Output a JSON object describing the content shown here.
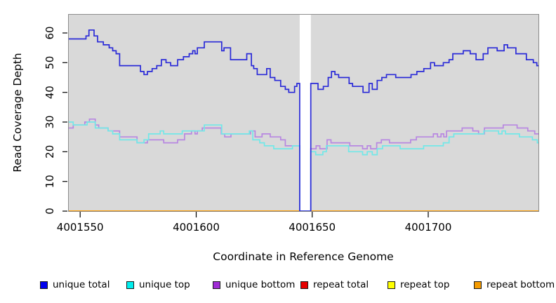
{
  "figure": {
    "x_axis_label": "Coordinate in Reference Genome",
    "y_axis_label": "Read Coverage Depth"
  },
  "chart_data": {
    "type": "line",
    "step": true,
    "title": "",
    "xlabel": "Coordinate in Reference Genome",
    "ylabel": "Read Coverage Depth",
    "x_range": [
      4001544.8,
      4001747.8
    ],
    "y_range": [
      0,
      66.4
    ],
    "x_ticks": [
      "4001550",
      "4001600",
      "4001650",
      "4001700"
    ],
    "x_tick_values": [
      4001550,
      4001600,
      4001650,
      4001700
    ],
    "y_ticks": [
      "0",
      "10",
      "20",
      "30",
      "40",
      "50",
      "60"
    ],
    "y_tick_values": [
      0,
      10,
      20,
      30,
      40,
      50,
      60
    ],
    "plot_bg": "#d9d9d9",
    "masked_region": [
      4001644.6,
      4001649.4
    ],
    "masked_region_color": "#ffffff",
    "grid": false,
    "legend_position": "bottom",
    "legend": [
      {
        "label": "unique total",
        "color": "#0000ee"
      },
      {
        "label": "unique top",
        "color": "#00eeee"
      },
      {
        "label": "unique bottom",
        "color": "#a02cd6"
      },
      {
        "label": "repeat total",
        "color": "#e60000"
      },
      {
        "label": "repeat top",
        "color": "#ffff00"
      },
      {
        "label": "repeat bottom",
        "color": "#f59b00"
      }
    ],
    "series": [
      {
        "name": "repeat total",
        "color": "#e60000",
        "points": [
          [
            4001544.8,
            0
          ]
        ]
      },
      {
        "name": "repeat top",
        "color": "#ffff00",
        "points": [
          [
            4001544.8,
            0
          ]
        ]
      },
      {
        "name": "repeat bottom",
        "color": "#ff9800",
        "points": [
          [
            4001544.8,
            0
          ]
        ]
      },
      {
        "name": "unique bottom",
        "color": "#b887e1",
        "points": [
          [
            4001544.8,
            28
          ],
          [
            4001547,
            29
          ],
          [
            4001552,
            30
          ],
          [
            4001554,
            31
          ],
          [
            4001556.5,
            29
          ],
          [
            4001558,
            28
          ],
          [
            4001562,
            27
          ],
          [
            4001567,
            25
          ],
          [
            4001574.5,
            23
          ],
          [
            4001579,
            24
          ],
          [
            4001586,
            23
          ],
          [
            4001592,
            24
          ],
          [
            4001595,
            26
          ],
          [
            4001598,
            27
          ],
          [
            4001599.5,
            26
          ],
          [
            4001600.5,
            27
          ],
          [
            4001602.6,
            28
          ],
          [
            4001610.8,
            26
          ],
          [
            4001612.3,
            25
          ],
          [
            4001615,
            26
          ],
          [
            4001623.4,
            27
          ],
          [
            4001625.4,
            25
          ],
          [
            4001628.4,
            26
          ],
          [
            4001631.9,
            25
          ],
          [
            4001636.4,
            24
          ],
          [
            4001638.4,
            22
          ],
          [
            4001644.6,
            0
          ],
          [
            4001649.4,
            21
          ],
          [
            4001651.7,
            22
          ],
          [
            4001653.3,
            21
          ],
          [
            4001656.4,
            24
          ],
          [
            4001658.1,
            23
          ],
          [
            4001666.2,
            22
          ],
          [
            4001671.7,
            21
          ],
          [
            4001673.7,
            22
          ],
          [
            4001675.2,
            21
          ],
          [
            4001677.8,
            23
          ],
          [
            4001679.8,
            24
          ],
          [
            4001683.3,
            23
          ],
          [
            4001692.4,
            24
          ],
          [
            4001694.9,
            25
          ],
          [
            4001702.2,
            26
          ],
          [
            4001704,
            25
          ],
          [
            4001705.5,
            26
          ],
          [
            4001706.7,
            25
          ],
          [
            4001707.9,
            27
          ],
          [
            4001714.6,
            28
          ],
          [
            4001719.2,
            27
          ],
          [
            4001721.7,
            26
          ],
          [
            4001724.2,
            28
          ],
          [
            4001732.3,
            29
          ],
          [
            4001738.3,
            28
          ],
          [
            4001742.9,
            27
          ],
          [
            4001745.9,
            26
          ]
        ]
      },
      {
        "name": "unique top",
        "color": "#72e8e8",
        "points": [
          [
            4001544.8,
            30
          ],
          [
            4001547,
            29
          ],
          [
            4001553,
            30
          ],
          [
            4001556.5,
            28
          ],
          [
            4001562,
            27
          ],
          [
            4001564,
            26
          ],
          [
            4001567,
            24
          ],
          [
            4001574.5,
            23
          ],
          [
            4001577.5,
            24
          ],
          [
            4001579.5,
            26
          ],
          [
            4001584.5,
            27
          ],
          [
            4001586,
            26
          ],
          [
            4001594,
            27
          ],
          [
            4001603.5,
            29
          ],
          [
            4001611,
            26
          ],
          [
            4001622.9,
            27
          ],
          [
            4001624.4,
            24
          ],
          [
            4001627.4,
            23
          ],
          [
            4001629.4,
            22
          ],
          [
            4001633.4,
            21
          ],
          [
            4001641.5,
            22
          ],
          [
            4001644.6,
            0
          ],
          [
            4001649.4,
            20
          ],
          [
            4001651.5,
            19
          ],
          [
            4001654.6,
            20
          ],
          [
            4001656.1,
            22
          ],
          [
            4001665.7,
            20
          ],
          [
            4001671.7,
            19
          ],
          [
            4001673.7,
            20
          ],
          [
            4001675.9,
            19
          ],
          [
            4001678,
            21
          ],
          [
            4001680.3,
            22
          ],
          [
            4001687.9,
            21
          ],
          [
            4001698,
            22
          ],
          [
            4001706.5,
            23
          ],
          [
            4001709,
            25
          ],
          [
            4001711,
            26
          ],
          [
            4001724,
            27
          ],
          [
            4001730.3,
            26
          ],
          [
            4001731.8,
            27
          ],
          [
            4001733.3,
            26
          ],
          [
            4001739.3,
            25
          ],
          [
            4001744.9,
            24
          ],
          [
            4001747,
            23
          ]
        ]
      },
      {
        "name": "unique total",
        "color": "#2a2ad8",
        "points": [
          [
            4001544.8,
            58
          ],
          [
            4001552.5,
            59
          ],
          [
            4001553.8,
            61
          ],
          [
            4001556,
            59
          ],
          [
            4001557.5,
            57
          ],
          [
            4001560,
            56
          ],
          [
            4001562.5,
            55
          ],
          [
            4001564,
            54
          ],
          [
            4001565.5,
            53
          ],
          [
            4001567,
            49
          ],
          [
            4001576,
            47
          ],
          [
            4001577.5,
            46
          ],
          [
            4001579,
            47
          ],
          [
            4001581,
            48
          ],
          [
            4001583,
            49
          ],
          [
            4001585,
            51
          ],
          [
            4001587,
            50
          ],
          [
            4001589,
            49
          ],
          [
            4001592,
            51
          ],
          [
            4001594.5,
            52
          ],
          [
            4001597,
            53
          ],
          [
            4001598.5,
            54
          ],
          [
            4001599.5,
            53
          ],
          [
            4001600.5,
            55
          ],
          [
            4001603.5,
            57
          ],
          [
            4001611,
            54
          ],
          [
            4001612,
            55
          ],
          [
            4001614.8,
            51
          ],
          [
            4001621.8,
            53
          ],
          [
            4001623.8,
            49
          ],
          [
            4001624.8,
            48
          ],
          [
            4001626.3,
            46
          ],
          [
            4001630.4,
            48
          ],
          [
            4001631.9,
            45
          ],
          [
            4001633.9,
            44
          ],
          [
            4001636.4,
            42
          ],
          [
            4001638.4,
            41
          ],
          [
            4001639.9,
            40
          ],
          [
            4001642.4,
            42
          ],
          [
            4001643.4,
            43
          ],
          [
            4001644.6,
            0
          ],
          [
            4001649.4,
            43
          ],
          [
            4001652.5,
            41
          ],
          [
            4001654.8,
            42
          ],
          [
            4001656.9,
            45
          ],
          [
            4001658.3,
            47
          ],
          [
            4001659.8,
            46
          ],
          [
            4001661.4,
            45
          ],
          [
            4001665.9,
            43
          ],
          [
            4001667.4,
            42
          ],
          [
            4001671.9,
            40
          ],
          [
            4001674.5,
            43
          ],
          [
            4001675.9,
            41
          ],
          [
            4001678,
            44
          ],
          [
            4001680,
            45
          ],
          [
            4001682,
            46
          ],
          [
            4001686,
            45
          ],
          [
            4001692.6,
            46
          ],
          [
            4001695.1,
            47
          ],
          [
            4001698.1,
            48
          ],
          [
            4001701,
            50
          ],
          [
            4001702.7,
            49
          ],
          [
            4001706.5,
            50
          ],
          [
            4001709,
            51
          ],
          [
            4001710.6,
            53
          ],
          [
            4001715.1,
            54
          ],
          [
            4001718.1,
            53
          ],
          [
            4001720.6,
            51
          ],
          [
            4001723.7,
            53
          ],
          [
            4001725.7,
            55
          ],
          [
            4001729.7,
            54
          ],
          [
            4001732.7,
            56
          ],
          [
            4001734.2,
            55
          ],
          [
            4001737.8,
            53
          ],
          [
            4001742.3,
            51
          ],
          [
            4001745.3,
            50
          ],
          [
            4001746.8,
            49
          ]
        ]
      }
    ]
  }
}
